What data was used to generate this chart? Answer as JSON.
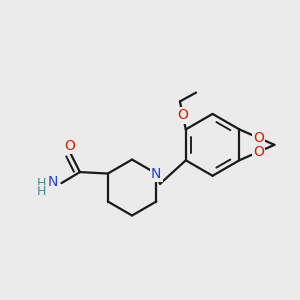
{
  "bg_color": "#ebebeb",
  "bond_color": "#1a1a1a",
  "bond_width": 1.6,
  "atom_colors": {
    "N": "#2244cc",
    "O": "#cc2200",
    "H": "#4a8888",
    "C": "#1a1a1a"
  },
  "font_size_atom": 10,
  "font_size_methyl": 9
}
